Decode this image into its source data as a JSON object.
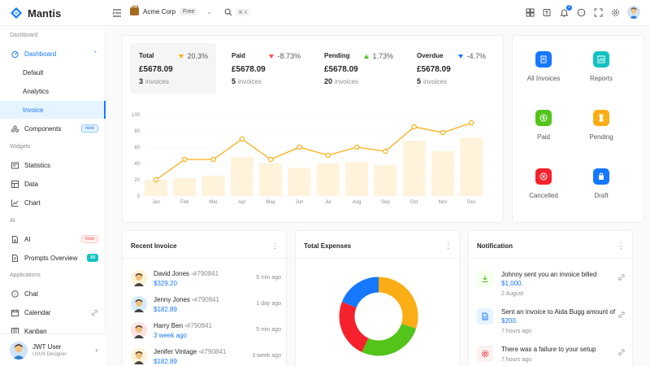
{
  "app": {
    "name": "Mantis"
  },
  "header": {
    "org_name": "Acme Corp",
    "org_badge": "Free",
    "search_shortcut": "⌘ K",
    "notification_count": "2"
  },
  "sidebar": {
    "sections": [
      "Dashboard",
      "Widgets",
      "AI",
      "Applications"
    ],
    "dashboard": {
      "label": "Dashboard",
      "children": [
        "Default",
        "Analytics",
        "Invoice"
      ]
    },
    "components": {
      "label": "Components",
      "badge": "new"
    },
    "widgets": [
      "Statistics",
      "Data",
      "Chart"
    ],
    "ai": {
      "label": "AI",
      "badge": "new",
      "prompts": "Prompts Overview",
      "prompts_badge": "AI"
    },
    "apps": [
      "Chat",
      "Calendar",
      "Kanban"
    ],
    "user": {
      "name": "JWT User",
      "role": "UI/UX Designer"
    }
  },
  "stats": [
    {
      "label": "Total",
      "change": "20.3%",
      "trend": "down-orange",
      "amount": "£5678.09",
      "count": "3",
      "count_label": "invoices"
    },
    {
      "label": "Paid",
      "change": "-8.73%",
      "trend": "down-red",
      "amount": "£5678.09",
      "count": "5",
      "count_label": "invoices"
    },
    {
      "label": "Pending",
      "change": "1.73%",
      "trend": "up-green",
      "amount": "£5678.09",
      "count": "20",
      "count_label": "invoices"
    },
    {
      "label": "Overdue",
      "change": "-4.7%",
      "trend": "down-blue",
      "amount": "£5678.09",
      "count": "5",
      "count_label": "invoices"
    }
  ],
  "quick_actions": [
    {
      "label": "All Invoices",
      "color": "#1677ff",
      "icon": "invoice-icon"
    },
    {
      "label": "Reports",
      "color": "#13c2c2",
      "icon": "reports-icon"
    },
    {
      "label": "Paid",
      "color": "#52c41a",
      "icon": "dollar-icon"
    },
    {
      "label": "Pending",
      "color": "#faad14",
      "icon": "hourglass-icon"
    },
    {
      "label": "Cancelled",
      "color": "#f5222d",
      "icon": "cancel-icon"
    },
    {
      "label": "Draft",
      "color": "#1677ff",
      "icon": "bag-icon"
    }
  ],
  "chart_data": {
    "type": "line",
    "categories": [
      "Jan",
      "Feb",
      "Mar",
      "Apr",
      "May",
      "Jun",
      "Jul",
      "Aug",
      "Sep",
      "Oct",
      "Nov",
      "Dec"
    ],
    "series": [
      {
        "values": [
          20,
          45,
          45,
          70,
          45,
          60,
          50,
          60,
          55,
          85,
          78,
          90
        ],
        "color": "#faad14",
        "kind": "line"
      },
      {
        "values": [
          20,
          22,
          25,
          48,
          40,
          35,
          40,
          42,
          38,
          68,
          55,
          72
        ],
        "color": "#fff3dc",
        "kind": "bar"
      }
    ],
    "yticks": [
      0,
      20,
      40,
      60,
      80,
      100
    ],
    "ylim": [
      0,
      100
    ],
    "grid": true
  },
  "recent_invoice": {
    "title": "Recent Invoice",
    "rows": [
      {
        "name": "David Jones",
        "ref": "#790841",
        "amount": "$329.20",
        "time": "5 min ago",
        "bg": "#fdf3d8"
      },
      {
        "name": "Jenny Jones",
        "ref": "#790841",
        "amount": "$182.89",
        "time": "1 day ago",
        "bg": "#d6ecfb"
      },
      {
        "name": "Harry Ben",
        "ref": "#790841",
        "amount": "3 week ago",
        "time": "5 min ago",
        "bg": "#fde2e2"
      },
      {
        "name": "Jenifer Vintage",
        "ref": "#790841",
        "amount": "$182.89",
        "time": "3 week ago",
        "bg": "#fdf3d8"
      }
    ]
  },
  "total_expenses": {
    "title": "Total Expenses",
    "chart_data": {
      "type": "pie",
      "slices": [
        {
          "value": 30,
          "color": "#faad14"
        },
        {
          "value": 27,
          "color": "#52c41a"
        },
        {
          "value": 24,
          "color": "#f5222d"
        },
        {
          "value": 19,
          "color": "#1677ff"
        }
      ]
    }
  },
  "notifications": {
    "title": "Notification",
    "items": [
      {
        "text": "Johnny sent you an invoice billed ",
        "amount": "$1,000.",
        "time": "2 August",
        "color": "#52c41a",
        "bg": "#f6ffed",
        "icon": "download-icon"
      },
      {
        "text": "Sent an invoice to Aida Bugg amount of ",
        "amount": "$200.",
        "time": "7 hours ago",
        "color": "#1677ff",
        "bg": "#e6f4ff",
        "icon": "document-icon"
      },
      {
        "text": "There was a failure to your setup",
        "amount": "",
        "time": "7 hours ago",
        "color": "#f5222d",
        "bg": "#fff1f0",
        "icon": "gear-icon"
      }
    ]
  }
}
